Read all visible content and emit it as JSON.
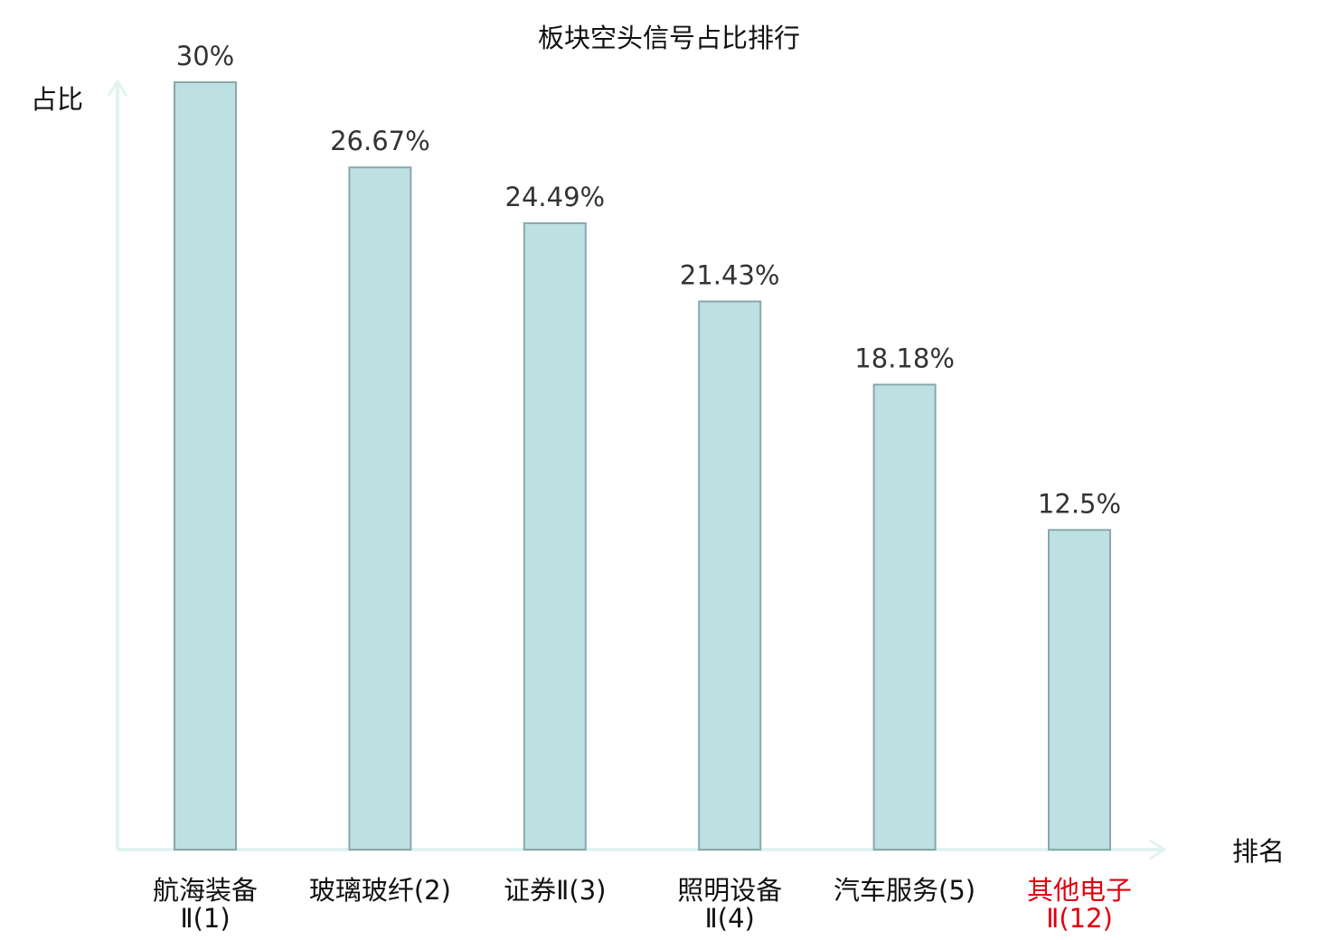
{
  "chart_data": {
    "type": "bar",
    "title": "板块空头信号占比排行",
    "ylabel": "占比",
    "xlabel": "排名",
    "ylim": [
      0,
      30
    ],
    "grid": false,
    "categories": [
      {
        "line1": "航海装备",
        "line2": "Ⅱ(1)",
        "highlight": false
      },
      {
        "line1": "玻璃玻纤(2)",
        "line2": "",
        "highlight": false
      },
      {
        "line1": "证券Ⅱ(3)",
        "line2": "",
        "highlight": false
      },
      {
        "line1": "照明设备",
        "line2": "Ⅱ(4)",
        "highlight": false
      },
      {
        "line1": "汽车服务(5)",
        "line2": "",
        "highlight": false
      },
      {
        "line1": "其他电子",
        "line2": "Ⅱ(12)",
        "highlight": true
      }
    ],
    "values": [
      30,
      26.67,
      24.49,
      21.43,
      18.18,
      12.5
    ],
    "value_labels": [
      "30%",
      "26.67%",
      "24.49%",
      "21.43%",
      "18.18%",
      "12.5%"
    ]
  },
  "colors": {
    "bar_fill": "#bde0e3",
    "bar_stroke": "#8aa8ab",
    "axis": "#e0f3f0",
    "label_text": "#111111",
    "value_text": "#333333",
    "highlight_text": "#e0000f"
  }
}
